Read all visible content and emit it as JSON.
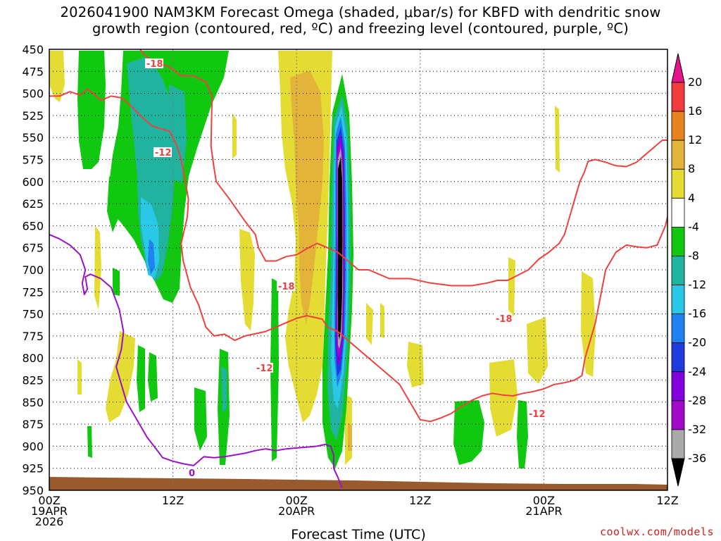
{
  "chart_data": {
    "type": "time-height contour",
    "title_line1": "2026041900 NAM3KM Forecast Omega (shaded, μbar/s) for KBFD with dendritic snow",
    "title_line2": "growth region (contoured, red, ºC) and freezing level (contoured, purple, ºC)",
    "xlabel": "Forecast Time (UTC)",
    "credit": "coolwx.com/models",
    "x_range_hours": [
      0,
      60
    ],
    "y_range_hPa": [
      450,
      950
    ],
    "x_ticks": [
      {
        "hour": 0,
        "l1": "00Z",
        "l2": "19APR",
        "l3": "2026"
      },
      {
        "hour": 12,
        "l1": "12Z",
        "l2": "",
        "l3": ""
      },
      {
        "hour": 24,
        "l1": "00Z",
        "l2": "20APR",
        "l3": ""
      },
      {
        "hour": 36,
        "l1": "12Z",
        "l2": "",
        "l3": ""
      },
      {
        "hour": 48,
        "l1": "00Z",
        "l2": "21APR",
        "l3": ""
      },
      {
        "hour": 60,
        "l1": "12Z",
        "l2": "",
        "l3": ""
      }
    ],
    "y_ticks": [
      450,
      475,
      500,
      525,
      550,
      575,
      600,
      625,
      650,
      675,
      700,
      725,
      750,
      775,
      800,
      825,
      850,
      875,
      900,
      925,
      950
    ],
    "colorbar": {
      "bins": [
        {
          "range": "16 to 20",
          "color": "#f03c3c"
        },
        {
          "range": "12 to 16",
          "color": "#e8821e"
        },
        {
          "range": "8 to 12",
          "color": "#e4b43a"
        },
        {
          "range": "4 to 8",
          "color": "#e4dc32"
        },
        {
          "range": "-4 to 4",
          "color": "#ffffff"
        },
        {
          "range": "-8 to -4",
          "color": "#10c810"
        },
        {
          "range": "-12 to -8",
          "color": "#20b4a0"
        },
        {
          "range": "-16 to -12",
          "color": "#28c8e6"
        },
        {
          "range": "-20 to -16",
          "color": "#1e82f0"
        },
        {
          "range": "-24 to -20",
          "color": "#1e3cdc"
        },
        {
          "range": "-28 to -24",
          "color": "#8200dc"
        },
        {
          "range": "-32 to -28",
          "color": "#a00ac8"
        },
        {
          "range": "-36 to -32",
          "color": "#aaaaaa"
        }
      ],
      "top_arrow_color": "#e6148c",
      "bottom_arrow_color": "#000000",
      "labels": [
        "20",
        "16",
        "12",
        "8",
        "4",
        "-4",
        "-8",
        "-12",
        "-16",
        "-20",
        "-24",
        "-28",
        "-32",
        "-36"
      ]
    },
    "contour_labels": {
      "m18_a": "-18",
      "m12_a": "-12",
      "m18_b": "-18",
      "m12_b": "-12",
      "m18_c": "-18",
      "m12_c": "-12",
      "zero": "0"
    },
    "contours": [
      {
        "name": "-18C upper",
        "color": "#f04040",
        "points": [
          [
            8.8,
            450
          ],
          [
            9.3,
            457
          ],
          [
            10,
            463
          ],
          [
            11.5,
            469
          ],
          [
            12,
            473
          ],
          [
            12.8,
            480
          ],
          [
            14,
            480
          ],
          [
            15.2,
            487
          ],
          [
            15.8,
            503
          ],
          [
            15.7,
            560
          ],
          [
            16,
            585
          ],
          [
            16.2,
            600
          ],
          [
            17.5,
            620
          ],
          [
            19,
            645
          ],
          [
            20,
            660
          ],
          [
            20.3,
            675
          ],
          [
            21,
            690
          ],
          [
            22,
            690
          ],
          [
            23,
            685
          ],
          [
            24,
            683
          ],
          [
            25,
            676
          ],
          [
            26,
            670
          ],
          [
            27,
            675
          ],
          [
            28,
            680
          ],
          [
            29,
            690
          ],
          [
            30,
            700
          ],
          [
            31,
            700
          ],
          [
            32,
            705
          ],
          [
            33,
            710
          ],
          [
            35,
            710
          ],
          [
            37,
            715
          ],
          [
            39,
            718
          ],
          [
            41,
            718
          ],
          [
            42.5,
            715
          ],
          [
            43.5,
            712
          ],
          [
            44.5,
            712
          ],
          [
            45.5,
            706
          ],
          [
            46.5,
            700
          ],
          [
            47.5,
            688
          ],
          [
            48.5,
            680
          ],
          [
            49.5,
            670
          ],
          [
            50,
            660
          ],
          [
            50.5,
            640
          ],
          [
            51,
            620
          ],
          [
            51.5,
            600
          ],
          [
            51.9,
            590
          ],
          [
            52.3,
            577
          ],
          [
            53,
            575
          ],
          [
            54,
            578
          ],
          [
            55,
            582
          ],
          [
            56,
            583
          ],
          [
            57,
            578
          ],
          [
            58,
            568
          ],
          [
            59,
            558
          ],
          [
            59.5,
            553
          ],
          [
            60,
            553
          ]
        ]
      },
      {
        "name": "-12C",
        "color": "#f04040",
        "points": [
          [
            0,
            503
          ],
          [
            1,
            503
          ],
          [
            2,
            498
          ],
          [
            3,
            502
          ],
          [
            3.7,
            495
          ],
          [
            4.5,
            502
          ],
          [
            5,
            508
          ],
          [
            6,
            503
          ],
          [
            7,
            505
          ],
          [
            8,
            515
          ],
          [
            9,
            527
          ],
          [
            10,
            537
          ],
          [
            10.8,
            540
          ],
          [
            11.7,
            543
          ],
          [
            12.4,
            560
          ],
          [
            12.8,
            575
          ],
          [
            13.2,
            600
          ],
          [
            13.5,
            620
          ],
          [
            13.4,
            640
          ],
          [
            13.1,
            655
          ],
          [
            12.8,
            670
          ],
          [
            13,
            690
          ],
          [
            13.7,
            720
          ],
          [
            14.5,
            740
          ],
          [
            15.2,
            765
          ],
          [
            16,
            775
          ],
          [
            17,
            773
          ],
          [
            18,
            780
          ],
          [
            19,
            775
          ],
          [
            21,
            770
          ],
          [
            23,
            760
          ],
          [
            24,
            755
          ],
          [
            25,
            752
          ],
          [
            26.5,
            756
          ],
          [
            27,
            765
          ],
          [
            28,
            770
          ],
          [
            29,
            780
          ],
          [
            30,
            790
          ],
          [
            31,
            800
          ],
          [
            32,
            810
          ],
          [
            33,
            820
          ],
          [
            34,
            830
          ],
          [
            35,
            850
          ],
          [
            36,
            870
          ],
          [
            37,
            872
          ],
          [
            38,
            868
          ],
          [
            39,
            863
          ],
          [
            40,
            855
          ],
          [
            41,
            848
          ],
          [
            42,
            843
          ],
          [
            43,
            840
          ],
          [
            44,
            842
          ],
          [
            45,
            843
          ],
          [
            46,
            840
          ],
          [
            47,
            838
          ],
          [
            48,
            835
          ],
          [
            49,
            830
          ],
          [
            50,
            828
          ],
          [
            51,
            825
          ],
          [
            51.7,
            820
          ],
          [
            52,
            800
          ],
          [
            52.5,
            780
          ],
          [
            53,
            760
          ],
          [
            53.5,
            730
          ],
          [
            54,
            700
          ],
          [
            55,
            680
          ],
          [
            56,
            672
          ],
          [
            57,
            674
          ],
          [
            58,
            675
          ],
          [
            59,
            672
          ],
          [
            59.8,
            650
          ],
          [
            60,
            640
          ]
        ]
      },
      {
        "name": "0C freezing level",
        "color": "#9b10c8",
        "points": [
          [
            0,
            660
          ],
          [
            1,
            665
          ],
          [
            2,
            672
          ],
          [
            3,
            683
          ],
          [
            3.5,
            700
          ],
          [
            3.2,
            715
          ],
          [
            3.4,
            728
          ],
          [
            3.7,
            722
          ],
          [
            3.5,
            708
          ],
          [
            4,
            705
          ],
          [
            5,
            710
          ],
          [
            6,
            720
          ],
          [
            6.8,
            745
          ],
          [
            7.2,
            770
          ],
          [
            7,
            790
          ],
          [
            6.5,
            810
          ],
          [
            7,
            830
          ],
          [
            7.5,
            850
          ],
          [
            8.5,
            870
          ],
          [
            9.5,
            890
          ],
          [
            10.5,
            905
          ],
          [
            11,
            913
          ],
          [
            12,
            917
          ],
          [
            13,
            920
          ],
          [
            14,
            922
          ],
          [
            15,
            912
          ],
          [
            16,
            913
          ],
          [
            17,
            912
          ],
          [
            18,
            910
          ],
          [
            19,
            908
          ],
          [
            20,
            905
          ],
          [
            21,
            903
          ],
          [
            22,
            905
          ],
          [
            23,
            903
          ],
          [
            24,
            902
          ],
          [
            25,
            901
          ],
          [
            26,
            900
          ],
          [
            26.8,
            898
          ],
          [
            27.3,
            900
          ],
          [
            27.6,
            910
          ],
          [
            27.6,
            925
          ],
          [
            28,
            935
          ],
          [
            28.4,
            947
          ]
        ]
      }
    ]
  }
}
